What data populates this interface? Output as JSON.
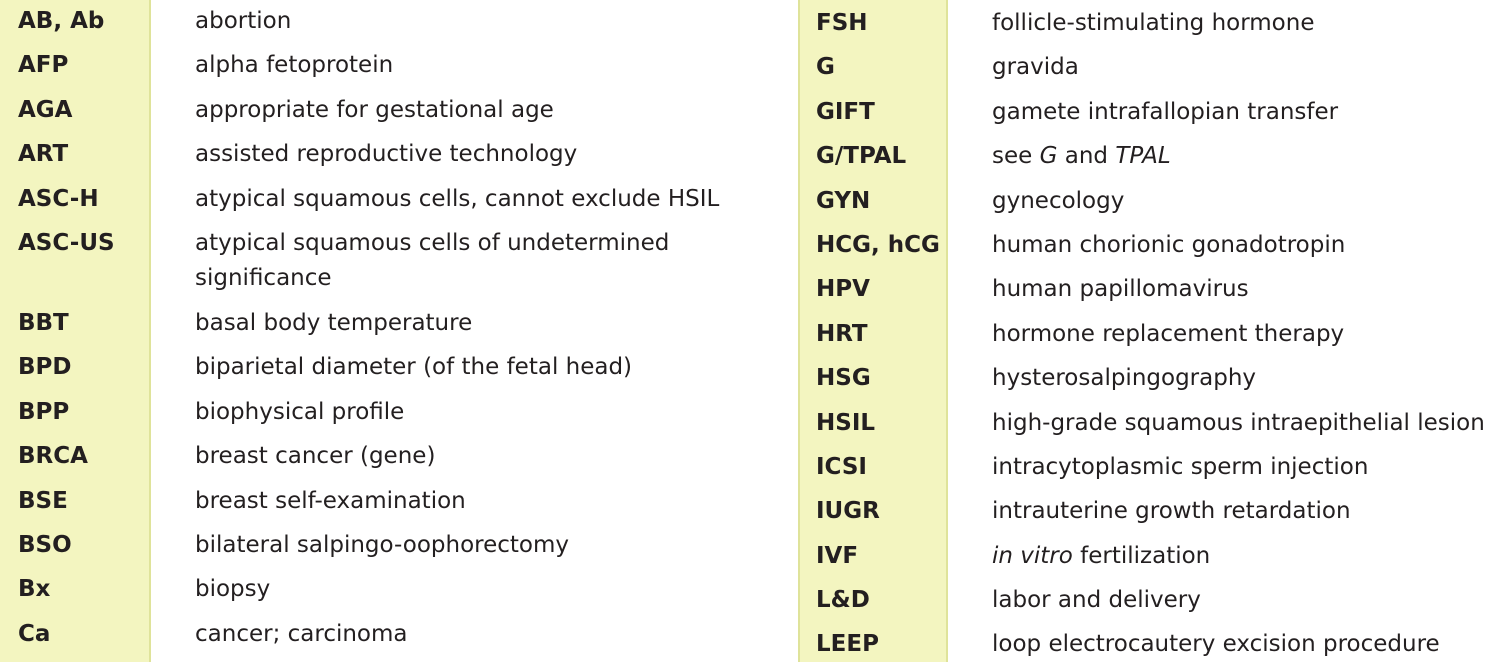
{
  "left": [
    {
      "abbr": "AB, Ab",
      "def": "abortion"
    },
    {
      "abbr": "AFP",
      "def": "alpha fetoprotein"
    },
    {
      "abbr": "AGA",
      "def": "appropriate for gestational age"
    },
    {
      "abbr": "ART",
      "def": "assisted reproductive technology"
    },
    {
      "abbr": "ASC-H",
      "def": "atypical squamous cells, cannot exclude HSIL"
    },
    {
      "abbr": "ASC-US",
      "def": "atypical squamous cells of undetermined significance"
    },
    {
      "abbr": "BBT",
      "def": "basal body temperature"
    },
    {
      "abbr": "BPD",
      "def": "biparietal diameter (of the fetal head)"
    },
    {
      "abbr": "BPP",
      "def": "biophysical profile"
    },
    {
      "abbr": "BRCA",
      "def": "breast cancer (gene)"
    },
    {
      "abbr": "BSE",
      "def": "breast self-examination"
    },
    {
      "abbr": "BSO",
      "def": "bilateral salpingo-oophorectomy"
    },
    {
      "abbr": "Bx",
      "def": "biopsy"
    },
    {
      "abbr": "Ca",
      "def": "cancer; carcinoma"
    }
  ],
  "right": [
    {
      "abbr": "FSH",
      "def": "follicle-stimulating hormone"
    },
    {
      "abbr": "G",
      "def": "gravida"
    },
    {
      "abbr": "GIFT",
      "def": "gamete intrafallopian transfer"
    },
    {
      "abbr": "G/TPAL",
      "def_pre": "see ",
      "def_i1": "G",
      "def_mid": " and ",
      "def_i2": "TPAL"
    },
    {
      "abbr": "GYN",
      "def": "gynecology"
    },
    {
      "abbr": "HCG, hCG",
      "def": "human chorionic gonadotropin"
    },
    {
      "abbr": "HPV",
      "def": "human papillomavirus"
    },
    {
      "abbr": "HRT",
      "def": "hormone replacement therapy"
    },
    {
      "abbr": "HSG",
      "def": "hysterosalpingography"
    },
    {
      "abbr": "HSIL",
      "def": "high-grade squamous intraepithelial lesion"
    },
    {
      "abbr": "ICSI",
      "def": "intracytoplasmic sperm injection"
    },
    {
      "abbr": "IUGR",
      "def": "intrauterine growth retardation"
    },
    {
      "abbr": "IVF",
      "def_i1": "in vitro",
      "def_post": " fertilization"
    },
    {
      "abbr": "L&D",
      "def": "labor and delivery"
    },
    {
      "abbr": "LEEP",
      "def": "loop electrocautery excision procedure"
    }
  ]
}
